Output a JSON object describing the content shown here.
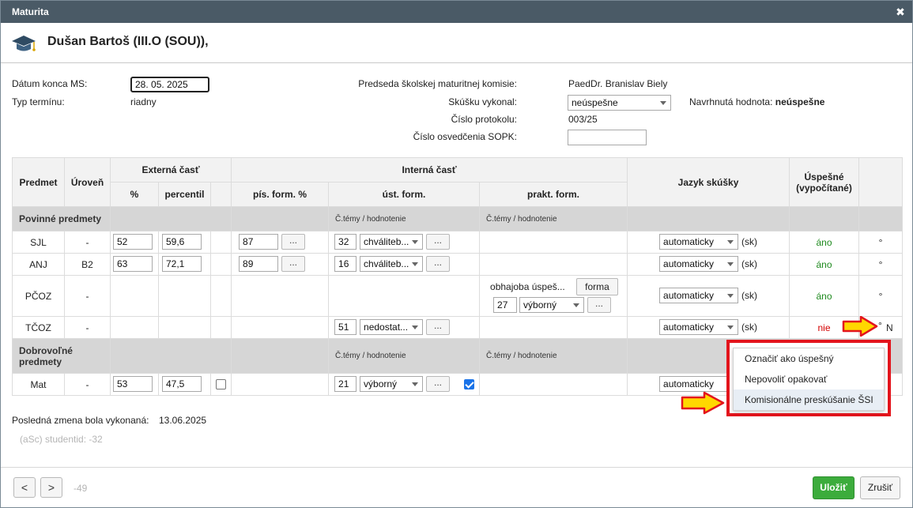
{
  "window": {
    "title": "Maturita",
    "close": "✖"
  },
  "header": {
    "student": "Dušan Bartoš (III.O (SOU)),",
    "icon": "graduation-cap-icon"
  },
  "form": {
    "date_label": "Dátum konca MS:",
    "date_value": "28. 05. 2025",
    "term_label": "Typ termínu:",
    "term_value": "riadny",
    "chair_label": "Predseda školskej maturitnej komisie:",
    "chair_value": "PaedDr. Branislav Biely",
    "exam_done_label": "Skúšku vykonal:",
    "exam_done_value": "neúspešne",
    "proposed_label": "Navrhnutá hodnota:",
    "proposed_value": "neúspešne",
    "protocol_label": "Číslo protokolu:",
    "protocol_value": "003/25",
    "sopk_label": "Číslo osvedčenia SOPK:",
    "sopk_value": ""
  },
  "table": {
    "headers": {
      "predmet": "Predmet",
      "uroven": "Úroveň",
      "externa": "Externá časť",
      "pct": "%",
      "percentil": "percentil",
      "interna": "Interná časť",
      "pis": "pís. form. %",
      "ust": "úst. form.",
      "prakt": "prakt. form.",
      "jazyk": "Jazyk skúšky",
      "uspesne": "Úspešné",
      "uspesne2": "(vypočítané)"
    },
    "group1": {
      "label": "Povinné predmety",
      "sub1": "Č.témy / hodnotenie",
      "sub2": "Č.témy / hodnotenie"
    },
    "group2": {
      "label": "Dobrovoľné predmety",
      "sub1": "Č.témy / hodnotenie",
      "sub2": "Č.témy / hodnotenie"
    },
    "rows": [
      {
        "predmet": "SJL",
        "uroven": "-",
        "pct": "52",
        "percentil": "59,6",
        "pis": "87",
        "dots": "...",
        "ust_num": "32",
        "ust_grade": "chváliteb...",
        "jazyk": "automaticky",
        "lang": "(sk)",
        "uspesne": "áno",
        "mark": "°"
      },
      {
        "predmet": "ANJ",
        "uroven": "B2",
        "pct": "63",
        "percentil": "72,1",
        "pis": "89",
        "dots": "...",
        "ust_num": "16",
        "ust_grade": "chváliteb...",
        "jazyk": "automaticky",
        "lang": "(sk)",
        "uspesne": "áno",
        "mark": "°"
      },
      {
        "predmet": "PČOZ",
        "uroven": "-",
        "prakt_text": "obhajoba úspeš...",
        "forma": "forma",
        "prakt_num": "27",
        "prakt_grade": "výborný",
        "dots": "...",
        "jazyk": "automaticky",
        "lang": "(sk)",
        "uspesne": "áno",
        "mark": "°"
      },
      {
        "predmet": "TČOZ",
        "uroven": "-",
        "ust_num": "51",
        "ust_grade": "nedostat...",
        "dots": "...",
        "jazyk": "automaticky",
        "lang": "(sk)",
        "uspesne": "nie",
        "mark": "°",
        "extra": "N"
      },
      {
        "predmet": "Mat",
        "uroven": "-",
        "pct": "53",
        "percentil": "47,5",
        "ust_num": "21",
        "ust_grade": "výborný",
        "dots": "...",
        "jazyk": "automaticky"
      }
    ]
  },
  "menu": {
    "items": [
      "Označiť ako úspešný",
      "Nepovoliť opakovať",
      "Komisionálne preskúšanie ŠSI"
    ]
  },
  "footer": {
    "last_change_label": "Posledná zmena bola vykonaná:",
    "last_change_value": "13.06.2025",
    "studentid": "(aSc) studentid: -32",
    "prev": "<",
    "next": ">",
    "counter": "-49",
    "save": "Uložiť",
    "cancel": "Zrušiť"
  },
  "colors": {
    "titlebar": "#4a5a66",
    "save": "#3cac3c",
    "highlight": "#e3141c",
    "yes": "#1f8a1f",
    "no": "#d40000",
    "arrow": "#ffd800"
  }
}
